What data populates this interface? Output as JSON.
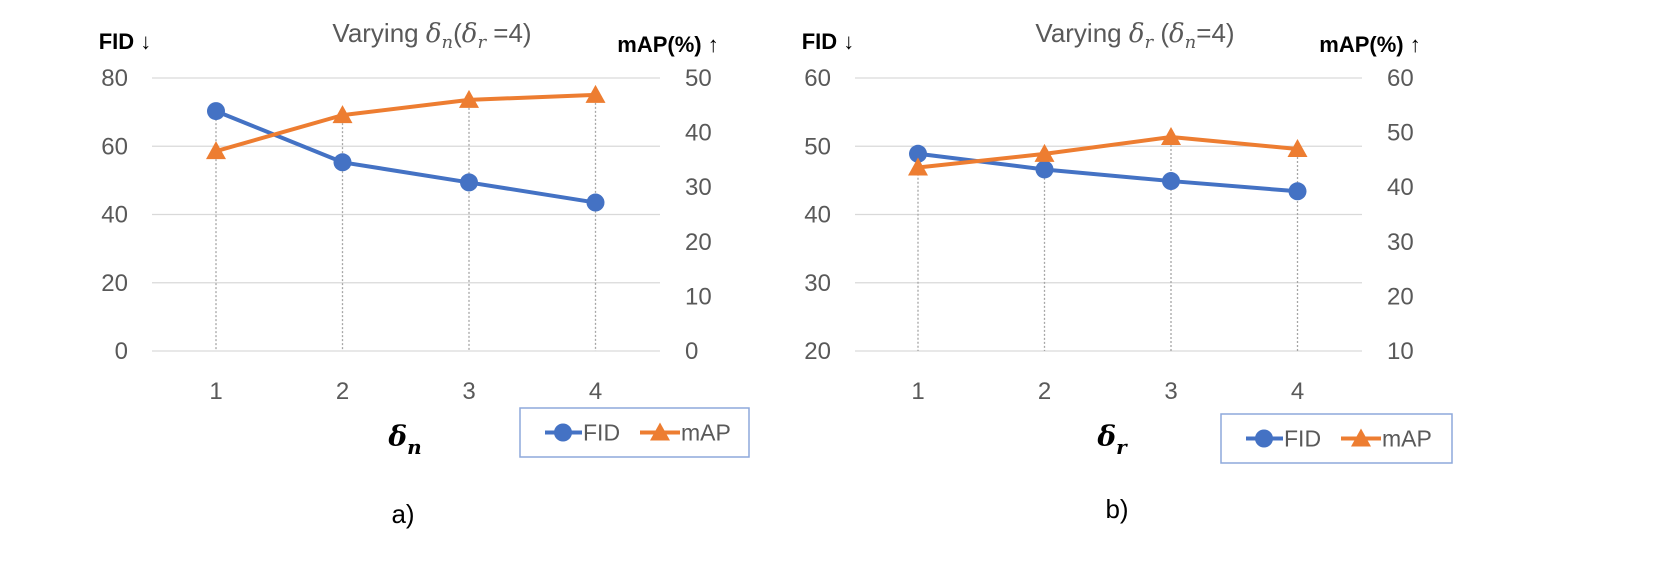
{
  "chart_data": [
    {
      "type": "line",
      "title_prefix": "Varying ",
      "title_var": "δ",
      "title_var_sub": "n",
      "title_paren_open": "(",
      "title_cond_var": "δ",
      "title_cond_sub": "r",
      "title_cond_value": " =4)",
      "x_label_var": "δ",
      "x_label_sub": "n",
      "y_left_label": "FID ↓",
      "y_right_label": "mAP(%) ↑",
      "categories": [
        "1",
        "2",
        "3",
        "4"
      ],
      "y_left_lim": [
        0,
        80
      ],
      "y_left_ticks": [
        "0",
        "20",
        "40",
        "60",
        "80"
      ],
      "y_right_lim": [
        0,
        50
      ],
      "y_right_ticks": [
        "0",
        "10",
        "20",
        "30",
        "40",
        "50"
      ],
      "series": [
        {
          "name": "FID",
          "axis": "left",
          "marker": "circle",
          "color": "#4472C4",
          "values": [
            70.3,
            55.3,
            49.4,
            43.5
          ]
        },
        {
          "name": "mAP",
          "axis": "right",
          "marker": "triangle",
          "color": "#ED7D31",
          "values": [
            36.6,
            43.2,
            46.0,
            46.9
          ]
        }
      ],
      "sublabel": "a)"
    },
    {
      "type": "line",
      "title_prefix": "Varying ",
      "title_var": "δ",
      "title_var_sub": "r",
      "title_paren_open": " (",
      "title_cond_var": "δ",
      "title_cond_sub": "n",
      "title_cond_value": "=4)",
      "x_label_var": "δ",
      "x_label_sub": "r",
      "y_left_label": "FID ↓",
      "y_right_label": "mAP(%) ↑",
      "categories": [
        "1",
        "2",
        "3",
        "4"
      ],
      "y_left_lim": [
        20,
        60
      ],
      "y_left_ticks": [
        "20",
        "30",
        "40",
        "50",
        "60"
      ],
      "y_right_lim": [
        10,
        60
      ],
      "y_right_ticks": [
        "10",
        "20",
        "30",
        "40",
        "50",
        "60"
      ],
      "series": [
        {
          "name": "FID",
          "axis": "left",
          "marker": "circle",
          "color": "#4472C4",
          "values": [
            48.9,
            46.6,
            44.9,
            43.4
          ]
        },
        {
          "name": "mAP",
          "axis": "right",
          "marker": "triangle",
          "color": "#ED7D31",
          "values": [
            43.6,
            46.1,
            49.2,
            47.0
          ]
        }
      ],
      "sublabel": "b)"
    }
  ]
}
